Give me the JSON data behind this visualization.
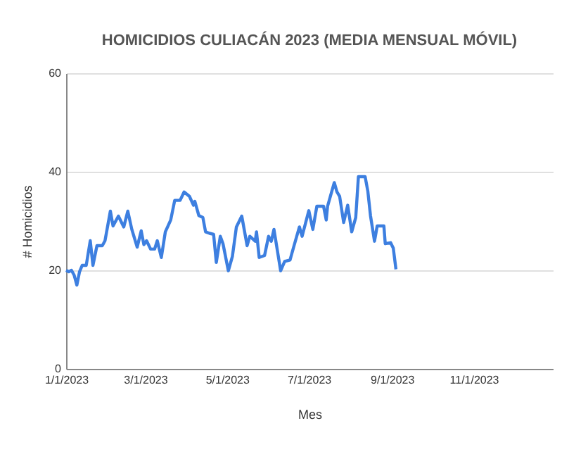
{
  "chart_data": {
    "type": "line",
    "title": "HOMICIDIOS CULIACÁN 2023 (MEDIA MENSUAL MÓVIL)",
    "xlabel": "Mes",
    "ylabel": "# Homicidios",
    "x": [
      "2023-01-01",
      "2023-01-03",
      "2023-01-05",
      "2023-01-07",
      "2023-01-09",
      "2023-01-11",
      "2023-01-13",
      "2023-01-16",
      "2023-01-19",
      "2023-01-21",
      "2023-01-24",
      "2023-01-28",
      "2023-01-30",
      "2023-02-03",
      "2023-02-05",
      "2023-02-09",
      "2023-02-13",
      "2023-02-16",
      "2023-02-19",
      "2023-02-23",
      "2023-02-26",
      "2023-02-28",
      "2023-03-02",
      "2023-03-05",
      "2023-03-08",
      "2023-03-10",
      "2023-03-13",
      "2023-03-16",
      "2023-03-20",
      "2023-03-23",
      "2023-03-27",
      "2023-03-30",
      "2023-04-03",
      "2023-04-06",
      "2023-04-07",
      "2023-04-10",
      "2023-04-13",
      "2023-04-15",
      "2023-04-18",
      "2023-04-21",
      "2023-04-23",
      "2023-04-26",
      "2023-04-28",
      "2023-05-02",
      "2023-05-05",
      "2023-05-08",
      "2023-05-12",
      "2023-05-16",
      "2023-05-18",
      "2023-05-22",
      "2023-05-23",
      "2023-05-25",
      "2023-05-29",
      "2023-06-01",
      "2023-06-03",
      "2023-06-05",
      "2023-06-10",
      "2023-06-13",
      "2023-06-17",
      "2023-06-20",
      "2023-06-24",
      "2023-06-26",
      "2023-07-01",
      "2023-07-04",
      "2023-07-07",
      "2023-07-12",
      "2023-07-14",
      "2023-07-15",
      "2023-07-20",
      "2023-07-22",
      "2023-07-24",
      "2023-07-27",
      "2023-07-30",
      "2023-08-02",
      "2023-08-05",
      "2023-08-07",
      "2023-08-12",
      "2023-08-14",
      "2023-08-16",
      "2023-08-19",
      "2023-08-21",
      "2023-08-26",
      "2023-08-27",
      "2023-08-31",
      "2023-09-02",
      "2023-09-04"
    ],
    "series": [
      {
        "color": "#3d7fe0",
        "values": [
          20,
          19.7,
          20,
          19,
          17,
          19.7,
          21,
          21,
          26,
          21,
          25,
          25,
          26,
          32,
          29,
          31,
          28.8,
          32,
          28.3,
          24.7,
          28,
          25.2,
          26,
          24.3,
          24.3,
          26,
          22.6,
          27.8,
          30.2,
          34.2,
          34.2,
          35.9,
          35,
          33.2,
          34,
          31.1,
          30.7,
          27.8,
          27.5,
          27.3,
          21.6,
          26.9,
          25.4,
          19.9,
          22.8,
          28.8,
          31,
          25,
          26.9,
          25.9,
          27.8,
          22.6,
          23,
          26.9,
          25.9,
          28.3,
          19.9,
          21.8,
          22.1,
          25,
          28.8,
          26.9,
          32.1,
          28.3,
          33,
          33,
          30.2,
          33,
          37.8,
          35.9,
          35,
          29.7,
          33.2,
          27.8,
          30.7,
          39,
          39,
          36.1,
          31.1,
          25.9,
          29,
          29,
          25.4,
          25.6,
          24.5,
          20.2
        ]
      }
    ],
    "xlim": [
      "2023-01-01",
      "2023-12-30"
    ],
    "xticks": [
      {
        "value": "2023-01-01",
        "label": "1/1/2023"
      },
      {
        "value": "2023-03-01",
        "label": "3/1/2023"
      },
      {
        "value": "2023-05-01",
        "label": "5/1/2023"
      },
      {
        "value": "2023-07-01",
        "label": "7/1/2023"
      },
      {
        "value": "2023-09-01",
        "label": "9/1/2023"
      },
      {
        "value": "2023-11-01",
        "label": "11/1/2023"
      }
    ],
    "ylim": [
      0,
      60
    ],
    "yticks": [
      0,
      20,
      40,
      60
    ],
    "grid": "y",
    "marker": "none",
    "line_style": "solid"
  }
}
